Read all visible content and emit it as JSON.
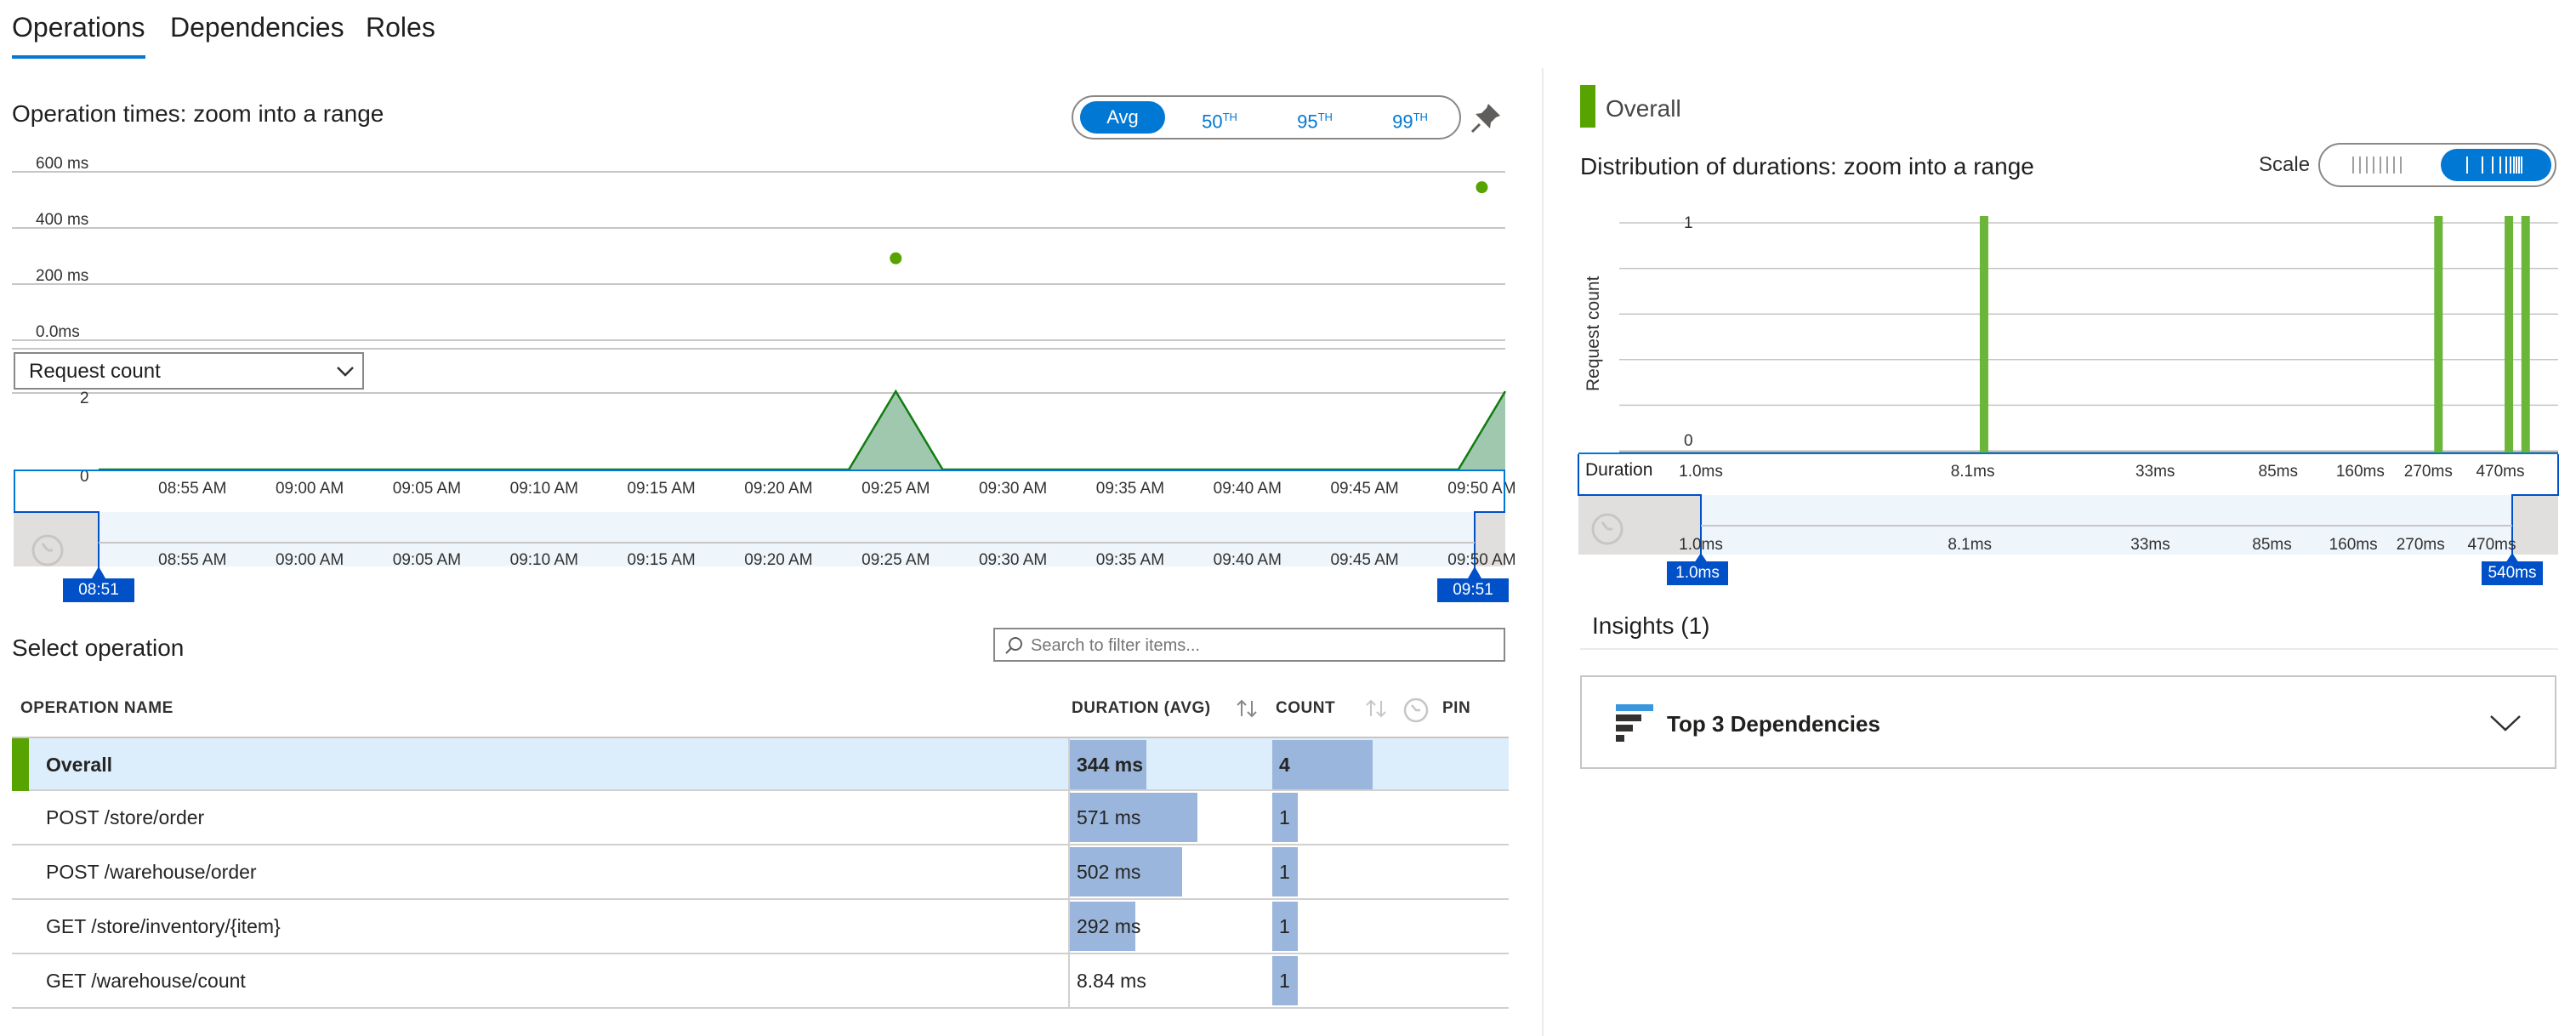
{
  "tabs": [
    {
      "label": "Operations",
      "active": true
    },
    {
      "label": "Dependencies",
      "active": false
    },
    {
      "label": "Roles",
      "active": false
    }
  ],
  "op_times": {
    "title": "Operation times: zoom into a range",
    "percentile_options": [
      {
        "label": "Avg",
        "selected": true
      },
      {
        "base": "50",
        "sup": "TH",
        "selected": false
      },
      {
        "base": "95",
        "sup": "TH",
        "selected": false
      },
      {
        "base": "99",
        "sup": "TH",
        "selected": false
      }
    ],
    "pin_icon": "pin-icon",
    "dropdown_value": "Request count",
    "range_start": "08:51 AM",
    "range_end": "09:51 AM"
  },
  "chart_data": [
    {
      "type": "scatter",
      "y_ticks": [
        "600 ms",
        "400 ms",
        "200 ms",
        "0.0ms"
      ],
      "ylim": [
        0,
        600
      ],
      "x_ticks": [
        "08:55 AM",
        "09:00 AM",
        "09:05 AM",
        "09:10 AM",
        "09:15 AM",
        "09:20 AM",
        "09:25 AM",
        "09:30 AM",
        "09:35 AM",
        "09:40 AM",
        "09:45 AM",
        "09:50 AM"
      ],
      "series": [
        {
          "points": [
            {
              "x": "09:25 AM",
              "y": 292
            },
            {
              "x": "09:50 AM",
              "y": 545
            }
          ]
        }
      ],
      "color": "#57a300"
    },
    {
      "type": "area",
      "y_ticks": [
        "2",
        "0"
      ],
      "ylim": [
        0,
        2
      ],
      "x_ticks": [
        "08:55 AM",
        "09:00 AM",
        "09:05 AM",
        "09:10 AM",
        "09:15 AM",
        "09:20 AM",
        "09:25 AM",
        "09:30 AM",
        "09:35 AM",
        "09:40 AM",
        "09:45 AM",
        "09:50 AM"
      ],
      "series": [
        {
          "points": [
            {
              "x": "08:51 AM",
              "y": 0
            },
            {
              "x": "09:23 AM",
              "y": 0
            },
            {
              "x": "09:25 AM",
              "y": 2
            },
            {
              "x": "09:27 AM",
              "y": 0
            },
            {
              "x": "09:49 AM",
              "y": 0
            },
            {
              "x": "09:51 AM",
              "y": 2
            }
          ]
        }
      ],
      "color": "#107c10"
    },
    {
      "type": "bar",
      "title": "Distribution of durations: zoom into a range",
      "ylabel": "Request count",
      "xlabel": "Duration",
      "y_ticks": [
        "1",
        "0"
      ],
      "ylim": [
        0,
        1
      ],
      "x_ticks": [
        "1.0ms",
        "8.1ms",
        "33ms",
        "85ms",
        "160ms",
        "270ms",
        "470ms"
      ],
      "bars": [
        {
          "x": "8.84 ms",
          "y": 1
        },
        {
          "x": "292 ms",
          "y": 1
        },
        {
          "x": "502 ms",
          "y": 1
        },
        {
          "x": "571 ms",
          "y": 1
        }
      ],
      "color": "#6bb538"
    }
  ],
  "overall_legend": {
    "label": "Overall",
    "color": "#57a300"
  },
  "distribution": {
    "scale_label": "Scale",
    "range_start": "1.0ms",
    "range_end": "540ms",
    "scale_linear_icon": "linear-scale-icon",
    "scale_log_icon": "log-scale-icon"
  },
  "select_operation": {
    "title": "Select operation",
    "search_placeholder": "Search to filter items...",
    "columns": {
      "name": "OPERATION NAME",
      "duration": "DURATION (AVG)",
      "count": "COUNT",
      "pin": "PIN"
    },
    "rows": [
      {
        "name": "Overall",
        "duration": "344 ms",
        "duration_frac": 0.602,
        "count": "4",
        "count_frac": 1.0,
        "selected": true
      },
      {
        "name": "POST /store/order",
        "duration": "571 ms",
        "duration_frac": 1.0,
        "count": "1",
        "count_frac": 0.25,
        "selected": false
      },
      {
        "name": "POST /warehouse/order",
        "duration": "502 ms",
        "duration_frac": 0.879,
        "count": "1",
        "count_frac": 0.25,
        "selected": false
      },
      {
        "name": "GET /store/inventory/{item}",
        "duration": "292 ms",
        "duration_frac": 0.511,
        "count": "1",
        "count_frac": 0.25,
        "selected": false
      },
      {
        "name": "GET /warehouse/count",
        "duration": "8.84 ms",
        "duration_frac": 0.015,
        "count": "1",
        "count_frac": 0.25,
        "selected": false
      }
    ]
  },
  "insights": {
    "title": "Insights (1)",
    "card_title": "Top 3 Dependencies",
    "card_icon": "dependencies-icon",
    "expand_icon": "chevron-down-icon"
  }
}
